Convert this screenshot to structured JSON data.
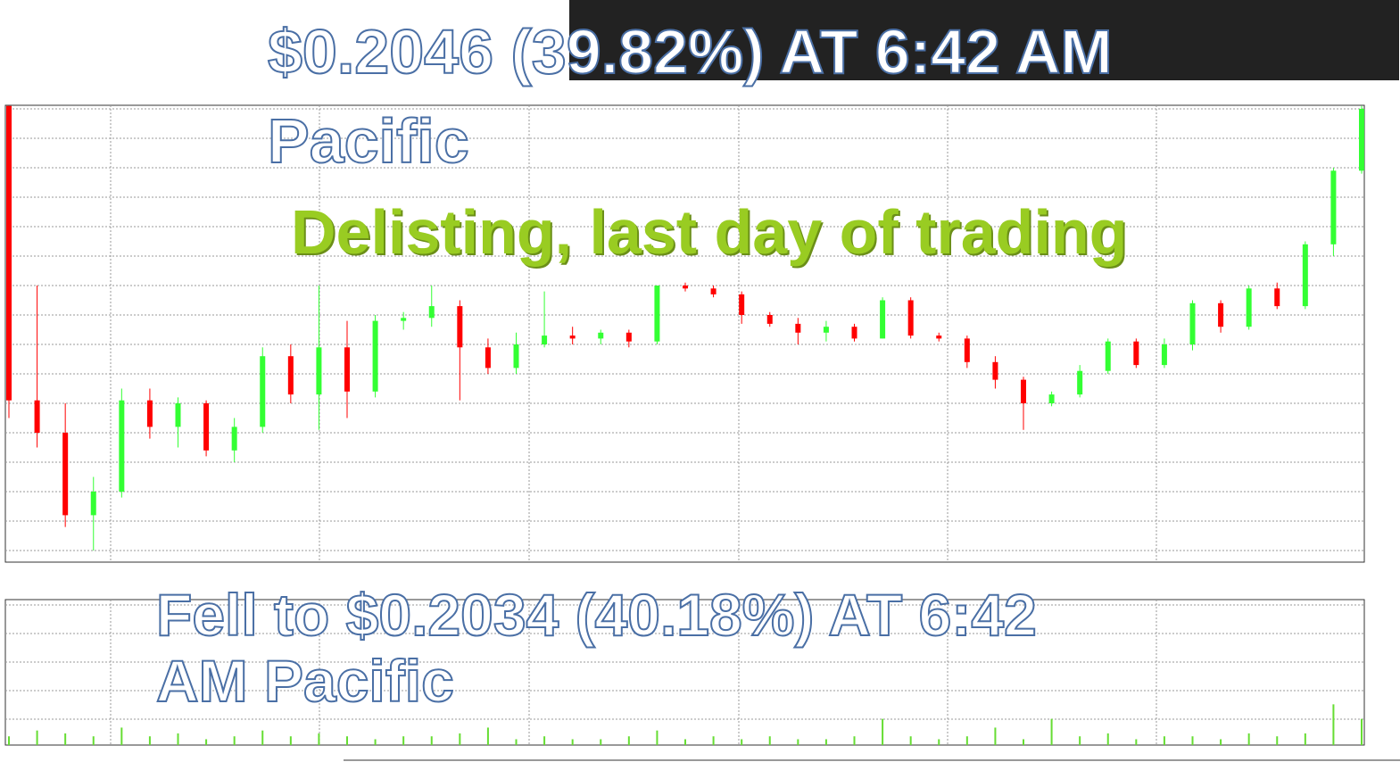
{
  "chart_data": {
    "type": "candlestick",
    "annotations": [
      "$0.2046 (39.82%) AT 6:42 AM Pacific",
      "Delisting, last day of trading",
      "Fell to $0.2034 (40.18%) AT 6:42 AM Pacific"
    ],
    "open": [
      15.1,
      5.1,
      4.0,
      1.2,
      2.0,
      5.1,
      4.2,
      5.0,
      3.4,
      4.2,
      6.6,
      5.3,
      6.9,
      5.4,
      7.8,
      7.9,
      8.3,
      6.9,
      6.2,
      7.0,
      7.3,
      7.2,
      7.4,
      7.1,
      9.0,
      8.9,
      8.7,
      8.0,
      7.7,
      7.4,
      7.6,
      7.2,
      8.5,
      7.3,
      7.2,
      6.4,
      5.8,
      5.0,
      5.3,
      6.1,
      7.1,
      6.3,
      7.0,
      8.4,
      7.6,
      8.9,
      8.3,
      10.4,
      12.9
    ],
    "high": [
      15.1,
      9.0,
      5.0,
      2.5,
      5.5,
      5.5,
      5.2,
      5.1,
      4.5,
      6.9,
      7.0,
      9.0,
      7.8,
      8.0,
      8.1,
      9.0,
      8.5,
      7.2,
      7.4,
      8.8,
      7.6,
      7.5,
      7.5,
      9.0,
      9.1,
      9.0,
      8.8,
      8.1,
      7.9,
      7.8,
      7.7,
      8.6,
      8.6,
      7.4,
      7.3,
      6.6,
      5.9,
      5.4,
      6.3,
      7.2,
      7.2,
      7.2,
      8.5,
      8.5,
      9.0,
      9.1,
      10.5,
      13.0,
      15.1
    ],
    "low": [
      4.5,
      3.5,
      0.8,
      0.0,
      1.8,
      3.8,
      3.5,
      3.2,
      3.0,
      4.0,
      5.0,
      4.1,
      4.5,
      5.2,
      7.5,
      7.6,
      5.1,
      6.0,
      6.0,
      6.9,
      7.0,
      7.0,
      6.9,
      7.0,
      8.8,
      8.6,
      7.7,
      7.6,
      7.0,
      7.1,
      7.1,
      7.2,
      7.2,
      7.1,
      6.2,
      5.5,
      4.1,
      4.9,
      5.2,
      6.0,
      6.2,
      6.2,
      6.8,
      7.4,
      7.5,
      8.2,
      8.2,
      10.0,
      12.8
    ],
    "close": [
      5.1,
      4.0,
      1.2,
      2.0,
      5.1,
      4.2,
      5.0,
      3.4,
      4.2,
      6.6,
      5.3,
      6.9,
      5.4,
      7.8,
      7.9,
      8.3,
      6.9,
      6.2,
      7.0,
      7.3,
      7.2,
      7.4,
      7.1,
      9.0,
      8.9,
      8.7,
      8.0,
      7.7,
      7.4,
      7.6,
      7.2,
      8.5,
      7.3,
      7.2,
      6.4,
      5.8,
      5.0,
      5.3,
      6.1,
      7.1,
      6.3,
      7.0,
      8.4,
      7.6,
      8.9,
      8.3,
      10.4,
      12.9,
      15.0
    ],
    "up_color": "#33ff33",
    "down_color": "#ff0000",
    "ylim": [
      0,
      15
    ],
    "volume": {
      "values": [
        0.3,
        0.5,
        0.4,
        0.3,
        0.6,
        0.3,
        0.4,
        0.2,
        0.3,
        0.5,
        0.3,
        0.4,
        0.3,
        0.2,
        0.3,
        0.3,
        0.4,
        0.6,
        0.2,
        0.3,
        0.2,
        0.2,
        0.3,
        0.5,
        0.2,
        0.3,
        0.2,
        0.3,
        0.2,
        0.2,
        0.3,
        0.9,
        0.3,
        0.2,
        0.3,
        0.6,
        0.2,
        0.9,
        0.3,
        0.4,
        0.2,
        0.3,
        0.3,
        0.2,
        0.4,
        0.3,
        0.4,
        1.4,
        0.9
      ],
      "color": "#66dd33",
      "ylim": [
        0,
        5
      ]
    }
  }
}
